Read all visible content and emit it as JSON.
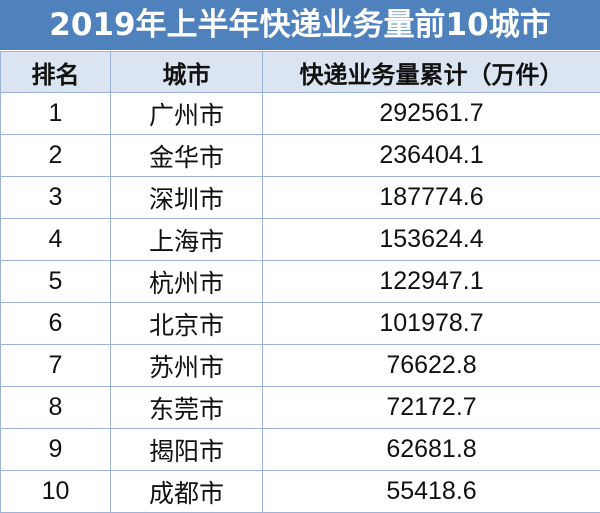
{
  "title": "2019年上半年快递业务量前10城市",
  "table": {
    "headers": [
      "排名",
      "城市",
      "快递业务量累计（万件）"
    ],
    "rows": [
      {
        "rank": "1",
        "city": "广州市",
        "volume": "292561.7"
      },
      {
        "rank": "2",
        "city": "金华市",
        "volume": "236404.1"
      },
      {
        "rank": "3",
        "city": "深圳市",
        "volume": "187774.6"
      },
      {
        "rank": "4",
        "city": "上海市",
        "volume": "153624.4"
      },
      {
        "rank": "5",
        "city": "杭州市",
        "volume": "122947.1"
      },
      {
        "rank": "6",
        "city": "北京市",
        "volume": "101978.7"
      },
      {
        "rank": "7",
        "city": "苏州市",
        "volume": "76622.8"
      },
      {
        "rank": "8",
        "city": "东莞市",
        "volume": "72172.7"
      },
      {
        "rank": "9",
        "city": "揭阳市",
        "volume": "62681.8"
      },
      {
        "rank": "10",
        "city": "成都市",
        "volume": "55418.6"
      }
    ]
  },
  "colors": {
    "title_background": "#4f81bd",
    "header_background": "#dbe5f1",
    "border": "#9db3d6"
  }
}
